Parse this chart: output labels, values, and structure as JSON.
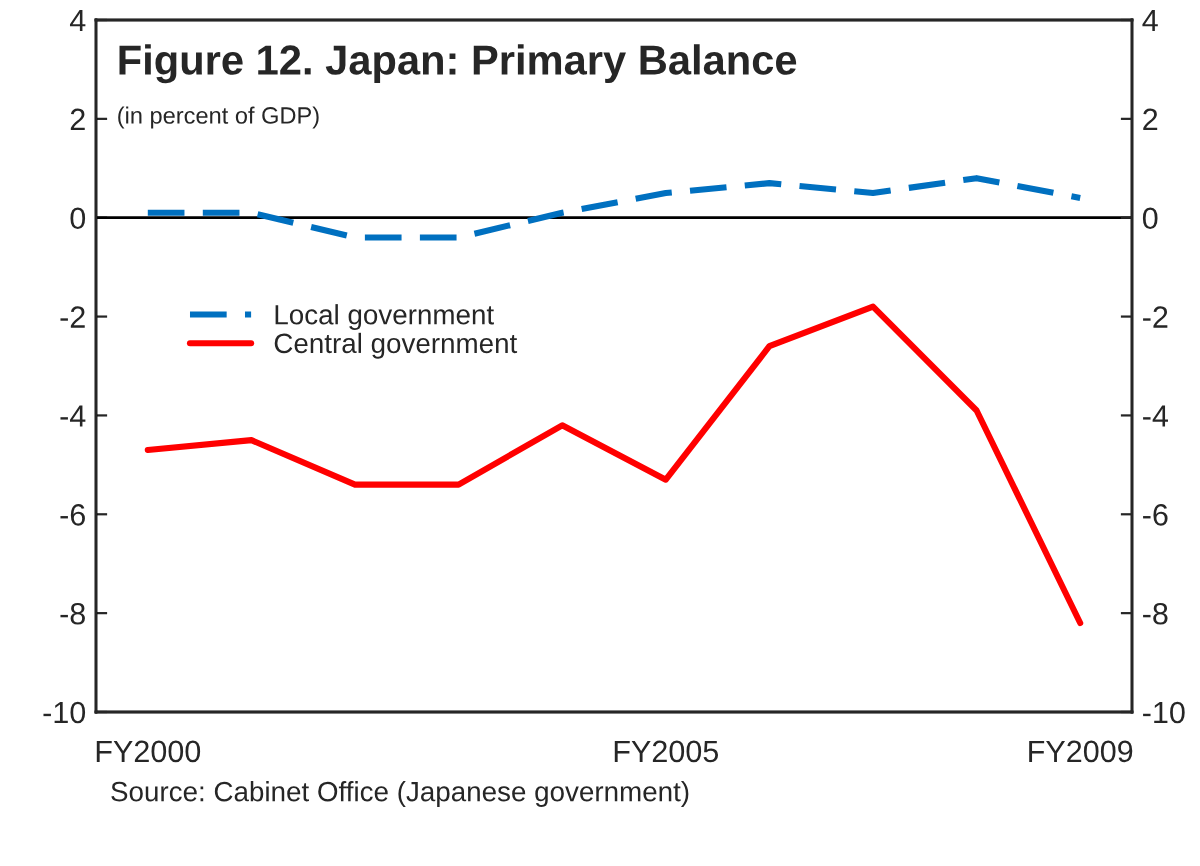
{
  "chart_data": {
    "type": "line",
    "title": "Figure 12. Japan: Primary Balance",
    "subtitle": "(in percent of GDP)",
    "categories": [
      "FY2000",
      null,
      null,
      null,
      null,
      "FY2005",
      null,
      null,
      null,
      "FY2009"
    ],
    "series": [
      {
        "name": "Local government",
        "color": "#0070c0",
        "line_style": "dashed",
        "values": [
          0.1,
          0.1,
          -0.4,
          -0.4,
          0.1,
          0.5,
          0.7,
          0.5,
          0.8,
          0.4
        ]
      },
      {
        "name": "Central government",
        "color": "#ff0000",
        "line_style": "solid",
        "values": [
          -4.7,
          -4.5,
          -5.4,
          -5.4,
          -4.2,
          -5.3,
          -2.6,
          -1.8,
          -3.9,
          -8.2
        ]
      }
    ],
    "ylim": [
      -10,
      4
    ],
    "yticks": [
      -10,
      -8,
      -6,
      -4,
      -2,
      0,
      2,
      4
    ],
    "y2lim": [
      -10,
      4
    ],
    "y2ticks": [
      -10,
      -8,
      -6,
      -4,
      -2,
      0,
      2,
      4
    ],
    "ref_lines": [
      {
        "axis": "y",
        "value": 0,
        "color": "#000000"
      }
    ],
    "grid": false,
    "legend": "center left",
    "marker": "none",
    "annotations": [
      "Source: Cabinet Office (Japanese government)"
    ]
  }
}
